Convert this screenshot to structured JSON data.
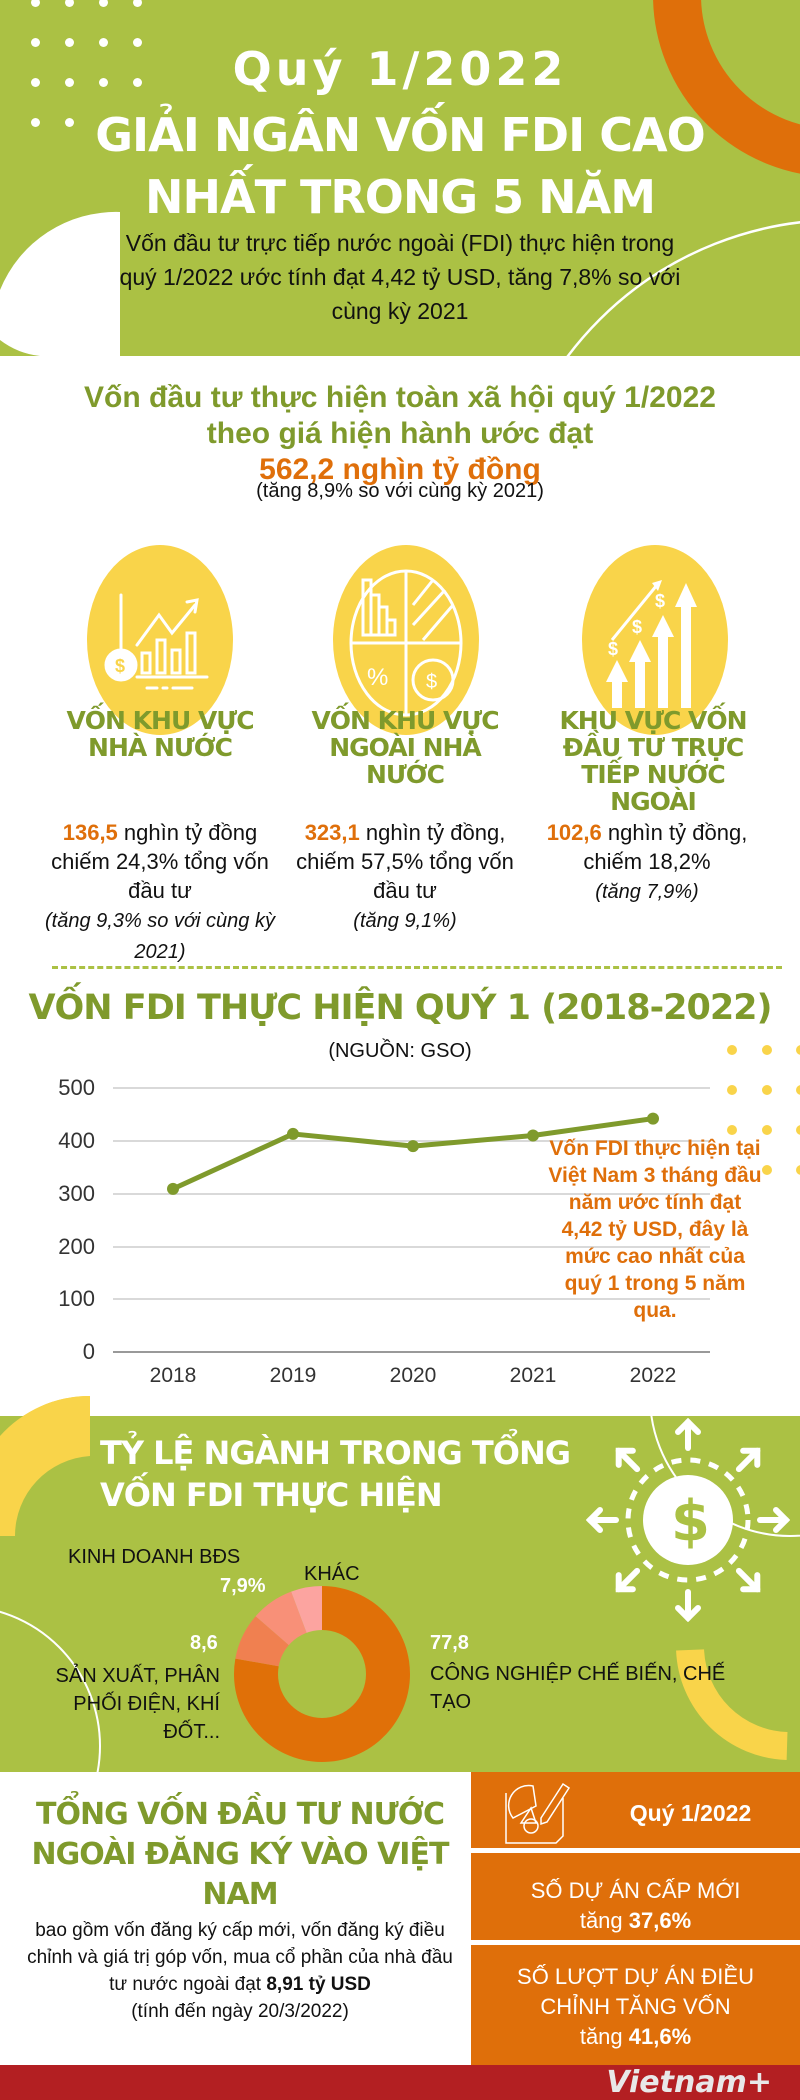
{
  "header": {
    "title_line1": "Quý 1/2022",
    "title_line2": "GIẢI NGÂN VỐN FDI CAO",
    "title_line3": "NHẤT TRONG 5 NĂM",
    "subtitle": "Vốn đầu tư trực tiếp nước ngoài (FDI) thực hiện trong quý 1/2022 ước tính đạt 4,42 tỷ USD, tăng 7,8% so với cùng kỳ 2021"
  },
  "total_investment": {
    "title": "Vốn đầu tư thực hiện toàn xã hội quý 1/2022 theo giá hiện hành ước đạt",
    "amount": "562,2 nghìn tỷ đồng",
    "note": "(tăng 8,9% so với cùng kỳ 2021)"
  },
  "sectors": [
    {
      "icon": "chart-growth-dollar-icon",
      "title": "VỐN KHU VỰC NHÀ NƯỚC",
      "value": "136,5",
      "text": " nghìn tỷ đồng chiếm 24,3% tổng vốn đầu tư",
      "note": "(tăng 9,3% so với cùng kỳ 2021)"
    },
    {
      "icon": "pie-chart-dollar-icon",
      "title": "VỐN KHU VỰC NGOÀI NHÀ NƯỚC",
      "value": "323,1",
      "text": " nghìn tỷ đồng, chiếm 57,5% tổng vốn đầu tư",
      "note": "(tăng 9,1%)"
    },
    {
      "icon": "rising-arrows-dollar-icon",
      "title": "KHU VỰC VỐN ĐẦU TƯ TRỰC TIẾP NƯỚC NGOÀI",
      "value": "102,6",
      "text": " nghìn tỷ đồng, chiếm 18,2%",
      "note": "(tăng 7,9%)"
    }
  ],
  "line_chart": {
    "title": "VỐN FDI THỰC HIỆN QUÝ 1 (2018-2022)",
    "source": "(NGUỒN: GSO)",
    "annotation": "Vốn FDI thực hiện tại Việt Nam 3 tháng đầu năm ước tính đạt 4,42 tỷ USD, đây là mức cao nhất của quý 1 trong 5 năm qua.",
    "yticks": [
      "500",
      "400",
      "300",
      "200",
      "100",
      "0"
    ],
    "xticks": [
      "2018",
      "2019",
      "2020",
      "2021",
      "2022"
    ]
  },
  "pie_section": {
    "title": "TỶ LỆ NGÀNH TRONG TỔNG VỐN FDI THỰC HIỆN",
    "labels": {
      "bds": "KINH DOANH BĐS",
      "bds_value": "7,9%",
      "other": "KHÁC",
      "energy_value": "8,6",
      "energy": "SẢN XUẤT, PHÂN PHỐI ĐIỆN, KHÍ ĐỐT...",
      "manufacturing_value": "77,8",
      "manufacturing": "CÔNG NGHIỆP CHẾ BIẾN, CHẾ TẠO"
    }
  },
  "registered": {
    "title": "TỔNG VỐN ĐẦU TƯ NƯỚC NGOÀI ĐĂNG KÝ VÀO VIỆT NAM",
    "text": "bao gồm vốn đăng ký cấp mới, vốn đăng ký điều chỉnh và giá trị góp vốn, mua cổ phần của nhà đầu tư nước ngoài đạt ",
    "amount": "8,91 tỷ USD",
    "note": "(tính đến ngày 20/3/2022)"
  },
  "orange_box": {
    "period": "Quý 1/2022",
    "stat1_label": "SỐ DỰ ÁN CẤP MỚI",
    "stat1_prefix": "tăng ",
    "stat1_value": "37,6%",
    "stat2_label": "SỐ LƯỢT DỰ ÁN ĐIỀU CHỈNH TĂNG VỐN",
    "stat2_prefix": "tăng ",
    "stat2_value": "41,6%"
  },
  "footer": {
    "logo": "Vietnam+"
  },
  "colors": {
    "green": "#abc144",
    "dark_green": "#7f9a2c",
    "orange": "#df6f0a",
    "yellow": "#f9d44a",
    "red": "#b31f22"
  },
  "chart_data": [
    {
      "type": "line",
      "title": "VỐN FDI THỰC HIỆN QUÝ 1 (2018-2022)",
      "subtitle": "(NGUỒN: GSO)",
      "categories": [
        "2018",
        "2019",
        "2020",
        "2021",
        "2022"
      ],
      "values": [
        309,
        413,
        390,
        410,
        442
      ],
      "xlabel": "",
      "ylabel": "",
      "ylim": [
        0,
        500
      ],
      "yticks": [
        0,
        100,
        200,
        300,
        400,
        500
      ],
      "grid": true,
      "annotation": "Vốn FDI thực hiện tại Việt Nam 3 tháng đầu năm ước tính đạt 4,42 tỷ USD, đây là mức cao nhất của quý 1 trong 5 năm qua."
    },
    {
      "type": "pie",
      "title": "TỶ LỆ NGÀNH TRONG TỔNG VỐN FDI THỰC HIỆN",
      "donut": true,
      "categories": [
        "CÔNG NGHIỆP CHẾ BIẾN, CHẾ TẠO",
        "SẢN XUẤT, PHÂN PHỐI ĐIỆN, KHÍ ĐỐT...",
        "KINH DOANH BĐS",
        "KHÁC"
      ],
      "values": [
        77.8,
        8.6,
        7.9,
        5.7
      ],
      "colors": [
        "#e07008",
        "#f08050",
        "#f89078",
        "#fca4a0"
      ]
    }
  ]
}
